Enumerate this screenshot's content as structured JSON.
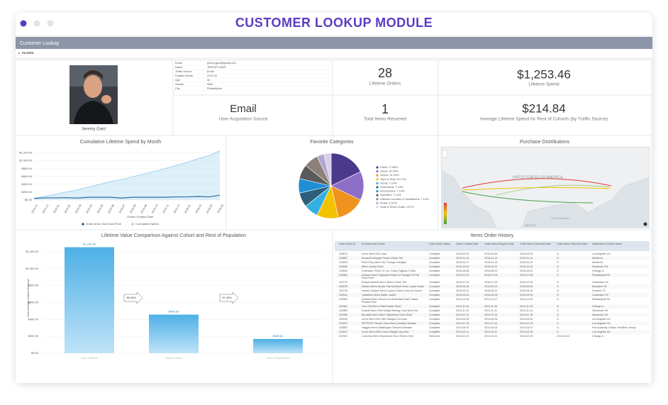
{
  "window": {
    "title": "CUSTOMER LOOKUP MODULE"
  },
  "header": {
    "title": "Customer Lookup",
    "filters": "FILTERS"
  },
  "profile": {
    "name": "Jeremy Gant",
    "fields": [
      [
        "Email",
        "jeremy.gant@gmail.com"
      ],
      [
        "Name",
        "JEREMY GANT"
      ],
      [
        "Traffic Source",
        "Email"
      ],
      [
        "Created Month",
        "2013-02"
      ],
      [
        "Age",
        "32"
      ],
      [
        "Gender",
        "Male"
      ],
      [
        "City",
        "Philadelphia"
      ]
    ]
  },
  "kpis": [
    {
      "value": "28",
      "label": "Lifetime Orders"
    },
    {
      "value": "$1,253.46",
      "label": "Lifetime Spend"
    },
    {
      "value": "Email",
      "label": "User Acquisition Source"
    },
    {
      "value": "1",
      "label": "Total Items Returned"
    },
    {
      "value": "$214.84",
      "label": "Average Lifetime Spend for Rest of Cohorts (by Traffic Source)"
    }
  ],
  "cumulative_chart": {
    "type": "line",
    "title": "Cumulative Lifetime Spend by Month",
    "x_label": "Orders Created Date",
    "categories": [
      "2014-11",
      "2014-12",
      "2015-01",
      "2015-02",
      "2015-03",
      "2015-04",
      "2015-05",
      "2015-06",
      "2015-07",
      "2015-08",
      "2015-09",
      "2015-10",
      "2015-11",
      "2015-12",
      "2016-01",
      "2016-02",
      "2016-03",
      "2016-04"
    ],
    "series": [
      {
        "name": "Order Items Total Sale Price",
        "color": "#2c6a9e",
        "values": [
          40,
          55,
          55,
          60,
          50,
          70,
          70,
          70,
          50,
          70,
          70,
          70,
          70,
          80,
          80,
          90,
          80,
          123.46
        ]
      },
      {
        "name": "Cumulative Spend",
        "color": "#9fd0ee",
        "values": [
          40,
          95,
          150,
          210,
          260,
          330,
          400,
          470,
          520,
          590,
          660,
          730,
          800,
          880,
          960,
          1050,
          1130,
          1253.46
        ]
      }
    ],
    "ylim": [
      0,
      1300
    ],
    "yticks": [
      {
        "value": 0,
        "label": "$0.00"
      },
      {
        "value": 200,
        "label": "$200.00"
      },
      {
        "value": 400,
        "label": "$400.00"
      },
      {
        "value": 600,
        "label": "$600.00"
      },
      {
        "value": 800,
        "label": "$800.00"
      },
      {
        "value": 1000,
        "label": "$1,000.00"
      },
      {
        "value": 1200,
        "label": "$1,200.00"
      }
    ],
    "grid": true
  },
  "pie_chart": {
    "type": "pie",
    "title": "Favorite Categories",
    "categories": [
      "Pants",
      "Jeans",
      "Shorts",
      "Tops & Tees",
      "Socks",
      "Underwear",
      "Accessories",
      "Sweaters",
      "Fashion Hoodies & Sweatshirts",
      "Active",
      "Suits & Sport Coats"
    ],
    "values": [
      17.86,
      14.29,
      14.29,
      10.71,
      7.14,
      7.14,
      7.14,
      7.14,
      7.14,
      3.57,
      3.57
    ],
    "value_labels": [
      "17.86%",
      "14.29%",
      "14.29%",
      "10.71%",
      "7.14%",
      "7.14%",
      "7.14%",
      "7.14%",
      "7.14%",
      "3.57%",
      "3.57%"
    ],
    "colors": [
      "#4b3a8c",
      "#8e6fc7",
      "#f0921e",
      "#f2c200",
      "#33b0e0",
      "#2b5f7a",
      "#1f8ed6",
      "#5a5a5a",
      "#8c8078",
      "#b3a6d6",
      "#d9cfe8"
    ]
  },
  "map": {
    "title": "Purchase Distributions",
    "labels": [
      "UNITED STATES OF AMERICA",
      "Gulf of Mexico",
      "MÉXICO"
    ]
  },
  "bar_chart": {
    "type": "bar",
    "title": "Lifetime Value Comparison Against Cohort and Rest of Population",
    "y_label": "User Average Lifetime Revenue",
    "categories": [
      "User Lifetime",
      "Brand Cohort",
      "Rest of Population"
    ],
    "values": [
      1253.46,
      456.53,
      168.61
    ],
    "value_labels": [
      "$1,253.46",
      "$456.53",
      "$168.61"
    ],
    "arrows": [
      "36.93%",
      "37.49%"
    ],
    "color": "#4db0e6",
    "ylim": [
      0,
      1300
    ],
    "yticks": [
      {
        "value": 0,
        "label": "$0.00"
      },
      {
        "value": 200,
        "label": "$200.00"
      },
      {
        "value": 400,
        "label": "$400.00"
      },
      {
        "value": 600,
        "label": "$600.00"
      },
      {
        "value": 800,
        "label": "$800.00"
      },
      {
        "value": 1000,
        "label": "$1,000.00"
      },
      {
        "value": 1200,
        "label": "$1,200.00"
      }
    ],
    "grid": true
  },
  "table": {
    "title": "Items Order History",
    "columns": [
      "Order Items ID",
      "Products Item Name",
      "Order Items Status",
      "Order Created Date",
      "Order Items Shipped Date",
      "Order Items Delivered Date",
      "Order Items Returned Date",
      "Distribution Centers Name"
    ],
    "rows": [
      [
        "243613",
        "Levi's Men's 501 Jean",
        "Complete",
        "2016-03-25",
        "2016-03-26",
        "2016-03-29",
        "∅",
        "Los Angeles CA"
      ],
      [
        "243657",
        "Armani Exchange Prima V-Neck Tee",
        "Complete",
        "2016-01-10",
        "2016-01-12",
        "2016-01-14",
        "∅",
        "Mobile AL"
      ],
      [
        "243003",
        "Fred Perry Men's Zip Through Cardigan",
        "Complete",
        "2016-02-17",
        "2016-02-18",
        "2016-02-22",
        "∅",
        "Mobile AL"
      ],
      [
        "242830",
        "Men's Jersey Short",
        "Complete",
        "2015-10-19",
        "2015-10-21",
        "2015-10-24",
        "∅",
        "Savannah GA"
      ],
      [
        "242815",
        "Champion T025C 6.1 oz. Cotton Tagless T-Shirt",
        "Complete",
        "2015-08-28",
        "2015-08-29",
        "2015-09-02",
        "∅",
        "Chicago IL"
      ],
      [
        "242863",
        "Dockers Men's Signature Khaki D2 Straight Fit Flat Front Pant",
        "Complete",
        "2015-07-03",
        "2015-07-05",
        "2015-07-08",
        "∅",
        "Philadelphia PA"
      ],
      [
        "242776",
        "Russell Athletic Men's Basic Cotton Tee",
        "Complete",
        "2015-07-01",
        "2015-07-02",
        "2015-07-04",
        "∅",
        "Charleston SC"
      ],
      [
        "242676",
        "Dickies Men's Acrylic Thermal Boot Crew 2-pack Socks",
        "Complete",
        "2015-05-28",
        "2015-05-29",
        "2015-06-02",
        "∅",
        "Memphis TN"
      ],
      [
        "242715",
        "Hanes Classics Men's 4-pack Cotton Crew-cut Socks",
        "Complete",
        "2015-05-11",
        "2015-05-12",
        "2015-05-15",
        "∅",
        "Houston TX"
      ],
      [
        "242541",
        "Quiksilver Men's Batter Jacket",
        "Complete",
        "2015-03-03",
        "2015-03-05",
        "2015-03-09",
        "∅",
        "Charleston SC"
      ],
      [
        "242554",
        "Dockers Men's Never-Iron Essential Khaki Classic Pleated Pant",
        "Complete",
        "2014-12-26",
        "2014-12-27",
        "2014-12-30",
        "∅",
        "Philadelphia PA"
      ],
      [
        "242561",
        "True Grit Men's Plaid Paddle Short",
        "Complete",
        "2014-11-24",
        "2014-11-25",
        "2014-11-29",
        "∅",
        "Chicago IL"
      ],
      [
        "242569",
        "Dusfold Men's Mid Weight Moving Crew Neck Tee",
        "Complete",
        "2014-11-10",
        "2014-11-11",
        "2014-11-14",
        "∅",
        "Savannah GA"
      ],
      [
        "242960",
        "Burnside Men's Burn Pigmented Chino Short",
        "Complete",
        "2014-07-14",
        "2014-07-15",
        "2014-07-18",
        "∅",
        "Savannah GA"
      ],
      [
        "243005",
        "Levi's Men's 514 Slim Straight Cord pan",
        "Complete",
        "2014-05-25",
        "2014-05-26",
        "2014-05-30",
        "∅",
        "Los Angeles CA"
      ],
      [
        "243007",
        "RETROFIT Border Town Men's Hooded Sweater",
        "Complete",
        "2014-07-15",
        "2014-07-16",
        "2014-07-19",
        "∅",
        "Los Angeles CA"
      ],
      [
        "242800",
        "Haggar Men's Washington Textured Sweater",
        "Complete",
        "2014-05-02",
        "2014-05-03",
        "2014-05-07",
        "∅",
        "Port Authority of New York/New Jersey"
      ],
      [
        "242817",
        "Levi's Men's 505 Loose Straight Leg Jean",
        "Complete",
        "2014-03-11",
        "2014-03-12",
        "2014-03-16",
        "∅",
        "Los Angeles CA"
      ],
      [
        "242901",
        "Columbia Men's Bonehead Short Sleeve Shirt",
        "Returned",
        "2014-02-20",
        "2014-02-21",
        "2014-02-25",
        "2014-03-02",
        "Chicago IL"
      ]
    ]
  }
}
